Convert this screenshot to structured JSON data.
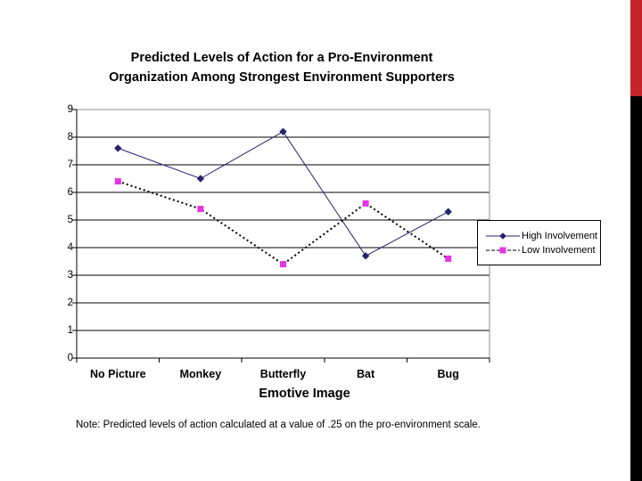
{
  "slide": {
    "title_line1": "Predicted Levels of Action for a Pro-Environment",
    "title_line2": "Organization Among Strongest Environment Supporters",
    "note": "Note: Predicted levels of action calculated at a value of .25 on the pro-environment scale.",
    "accent_colors": {
      "red": "#C5242B",
      "black": "#000000"
    }
  },
  "chart_data": {
    "type": "line",
    "title": "Predicted Levels of Action for a Pro-Environment Organization Among Strongest Environment Supporters",
    "categories": [
      "No Picture",
      "Monkey",
      "Butterfly",
      "Bat",
      "Bug"
    ],
    "series": [
      {
        "name": "High Involvement",
        "values": [
          7.6,
          6.5,
          8.2,
          3.7,
          5.3
        ],
        "line_color": "#26226E",
        "marker_color": "#26226E",
        "marker": "diamond",
        "line_style": "solid"
      },
      {
        "name": "Low Involvement",
        "values": [
          6.4,
          5.4,
          3.4,
          5.6,
          3.6
        ],
        "line_color": "#000000",
        "marker_color": "#E633E6",
        "marker": "square",
        "line_style": "dotted"
      }
    ],
    "xlabel": "Emotive Image",
    "ylabel": "",
    "ylim": [
      0,
      9
    ],
    "yticks": [
      0,
      1,
      2,
      3,
      4,
      5,
      6,
      7,
      8,
      9
    ],
    "grid": "horizontal-black-lines, gray plot top/right border",
    "legend_position": "right"
  }
}
